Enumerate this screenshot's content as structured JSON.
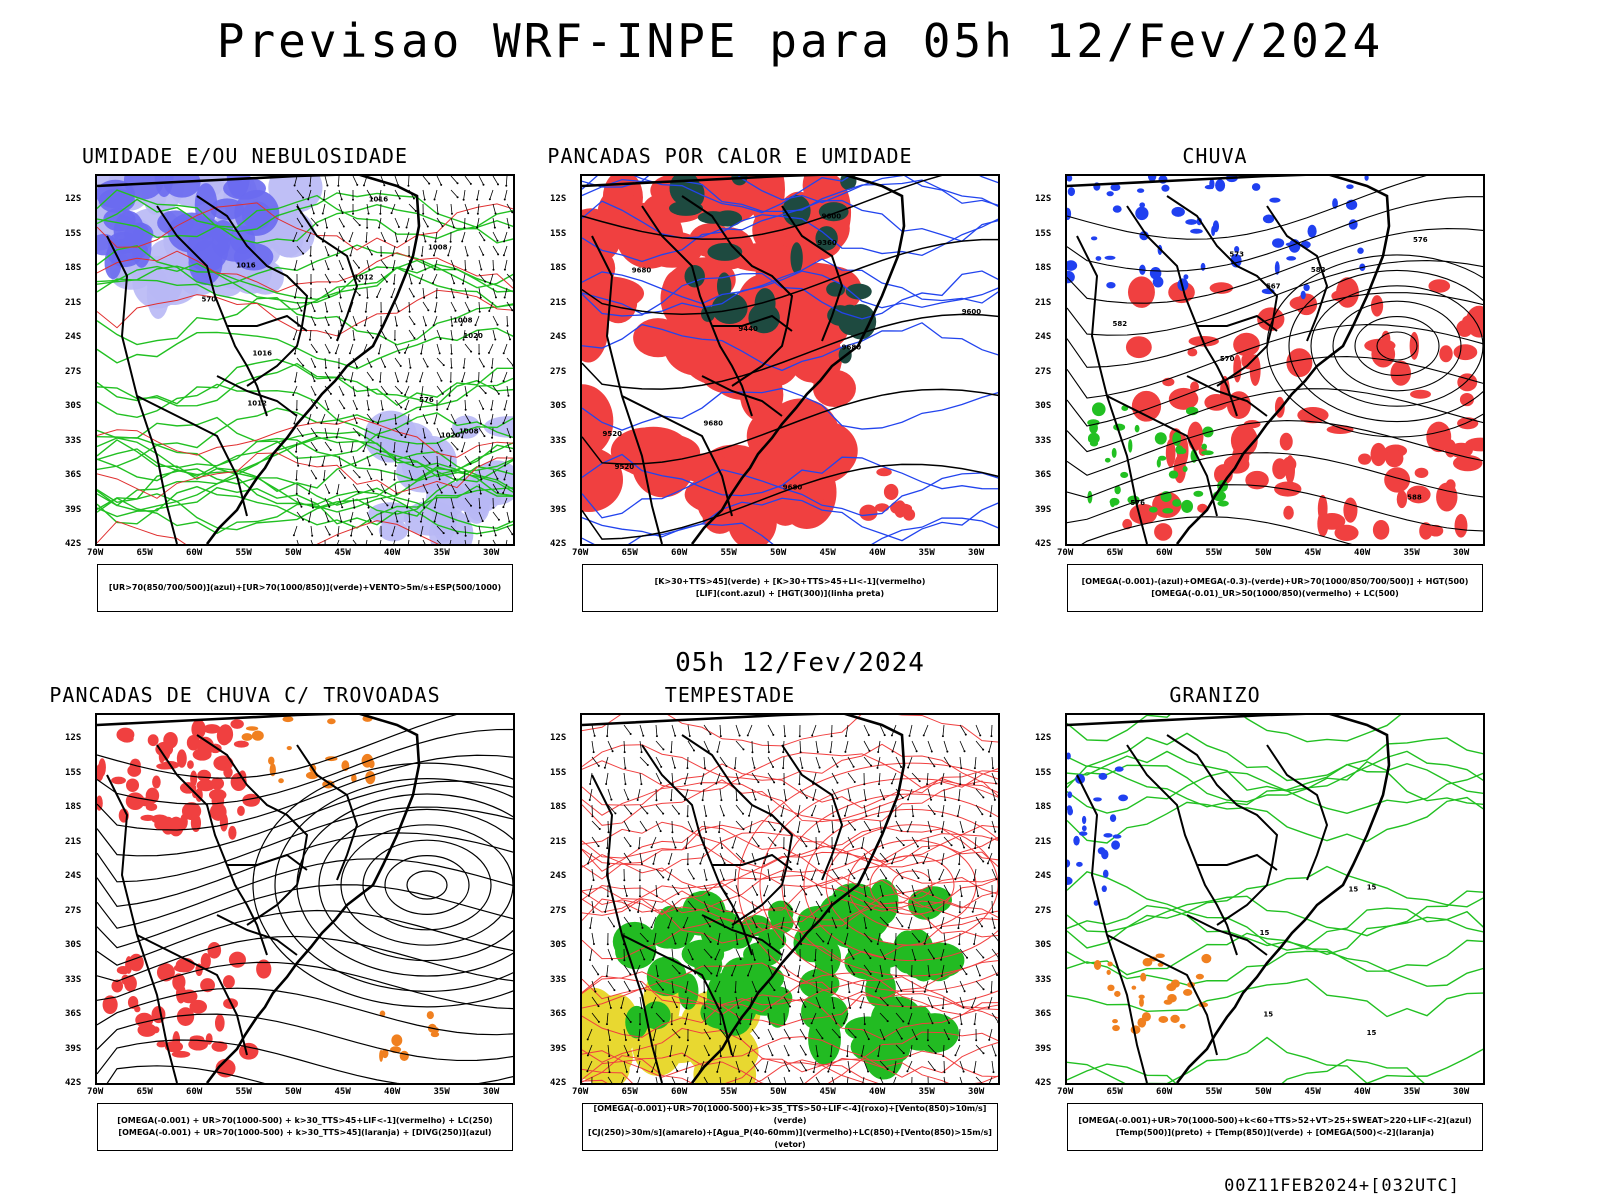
{
  "title": "Previsao WRF-INPE  para 05h 12/Fev/2024",
  "subtitle": "05h 12/Fev/2024",
  "footer": "00Z11FEB2024+[032UTC]",
  "axes": {
    "lat_labels": [
      "12S",
      "15S",
      "18S",
      "21S",
      "24S",
      "27S",
      "30S",
      "33S",
      "36S",
      "39S",
      "42S"
    ],
    "lon_labels": [
      "70W",
      "65W",
      "60W",
      "55W",
      "50W",
      "45W",
      "40W",
      "35W",
      "30W"
    ]
  },
  "panels": [
    {
      "id": "umidade",
      "title": "UMIDADE E/OU NEBULOSIDADE",
      "legend": [
        "[UR>70(850/700/500)](azul)+[UR>70(1000/850)](verde)+VENTO>5m/s+ESP(500/1000)"
      ],
      "contour_labels": [
        "1016",
        "1008",
        "1012",
        "1020",
        "1016",
        "1008",
        "1012",
        "1016",
        "1020",
        "1008",
        "570",
        "576"
      ],
      "colors": {
        "fill_primary": "#6a6af0",
        "fill_secondary": "#b8b8f5",
        "contour": "#22c022"
      }
    },
    {
      "id": "pancadas-calor",
      "title": "PANCADAS POR CALOR E UMIDADE",
      "legend": [
        "[K>30+TTS>45](verde) + [K>30+TTS>45+LI<-1](vermelho)",
        "[LIF](cont.azul) + [HGT(300)](linha preta)"
      ],
      "contour_labels": [
        "9600",
        "9680",
        "9680",
        "9680",
        "9600",
        "9520",
        "9440",
        "9360",
        "9520",
        "9680"
      ],
      "colors": {
        "fill_primary": "#f04040",
        "fill_secondary": "#1e4a40",
        "contour": "#2244ee"
      }
    },
    {
      "id": "chuva",
      "title": "CHUVA",
      "legend": [
        "[OMEGA(-0.001)-(azul)+OMEGA(-0.3)-(verde)+UR>70(1000/850/700/500)] + HGT(500)",
        "[OMEGA(-0.01)_UR>50(1000/850)(vermelho) + LC(500)"
      ],
      "contour_labels": [
        "588",
        "582",
        "576",
        "570",
        "582",
        "576",
        "573",
        "567"
      ],
      "colors": {
        "fill_primary": "#f04040",
        "fill_secondary": "#2040f0",
        "contour": "#000000"
      }
    },
    {
      "id": "trovoadas",
      "title": "PANCADAS DE CHUVA C/ TROVOADAS",
      "legend": [
        "[OMEGA(-0.001) + UR>70(1000-500) + k>30_TTS>45+LIF<-1](vermelho) + LC(250)",
        "[OMEGA(-0.001) + UR>70(1000-500) + k>30_TTS>45](laranja) + [DIVG(250)](azul)"
      ],
      "contour_labels": [],
      "colors": {
        "fill_primary": "#f04040",
        "fill_secondary": "#f08020",
        "contour": "#000000"
      }
    },
    {
      "id": "tempestade",
      "title": "TEMPESTADE",
      "legend": [
        "[OMEGA(-0.001)+UR>70(1000-500)+k>35_TTS>50+LIF<-4](roxo)+[Vento(850)>10m/s](verde)",
        "[CJ(250)>30m/s](amarelo)+[Agua_P(40-60mm)](vermelho)+LC(850)+[Vento(850)>15m/s](vetor)"
      ],
      "contour_labels": [],
      "colors": {
        "fill_primary": "#22bb22",
        "fill_secondary": "#e8d830",
        "contour": "#f04040"
      }
    },
    {
      "id": "granizo",
      "title": "GRANIZO",
      "legend": [
        "[OMEGA(-0.001)+UR>70(1000-500)+k<60+TTS>52+VT>25+SWEAT>220+LIF<-2](azul)",
        "[Temp(500)](preto) + [Temp(850)](verde) + [OMEGA(500)<-2](laranja)"
      ],
      "contour_labels": [
        "15",
        "15",
        "15",
        "15",
        "15"
      ],
      "colors": {
        "fill_primary": "#f08020",
        "fill_secondary": "#2040f0",
        "contour": "#22c022"
      }
    }
  ]
}
